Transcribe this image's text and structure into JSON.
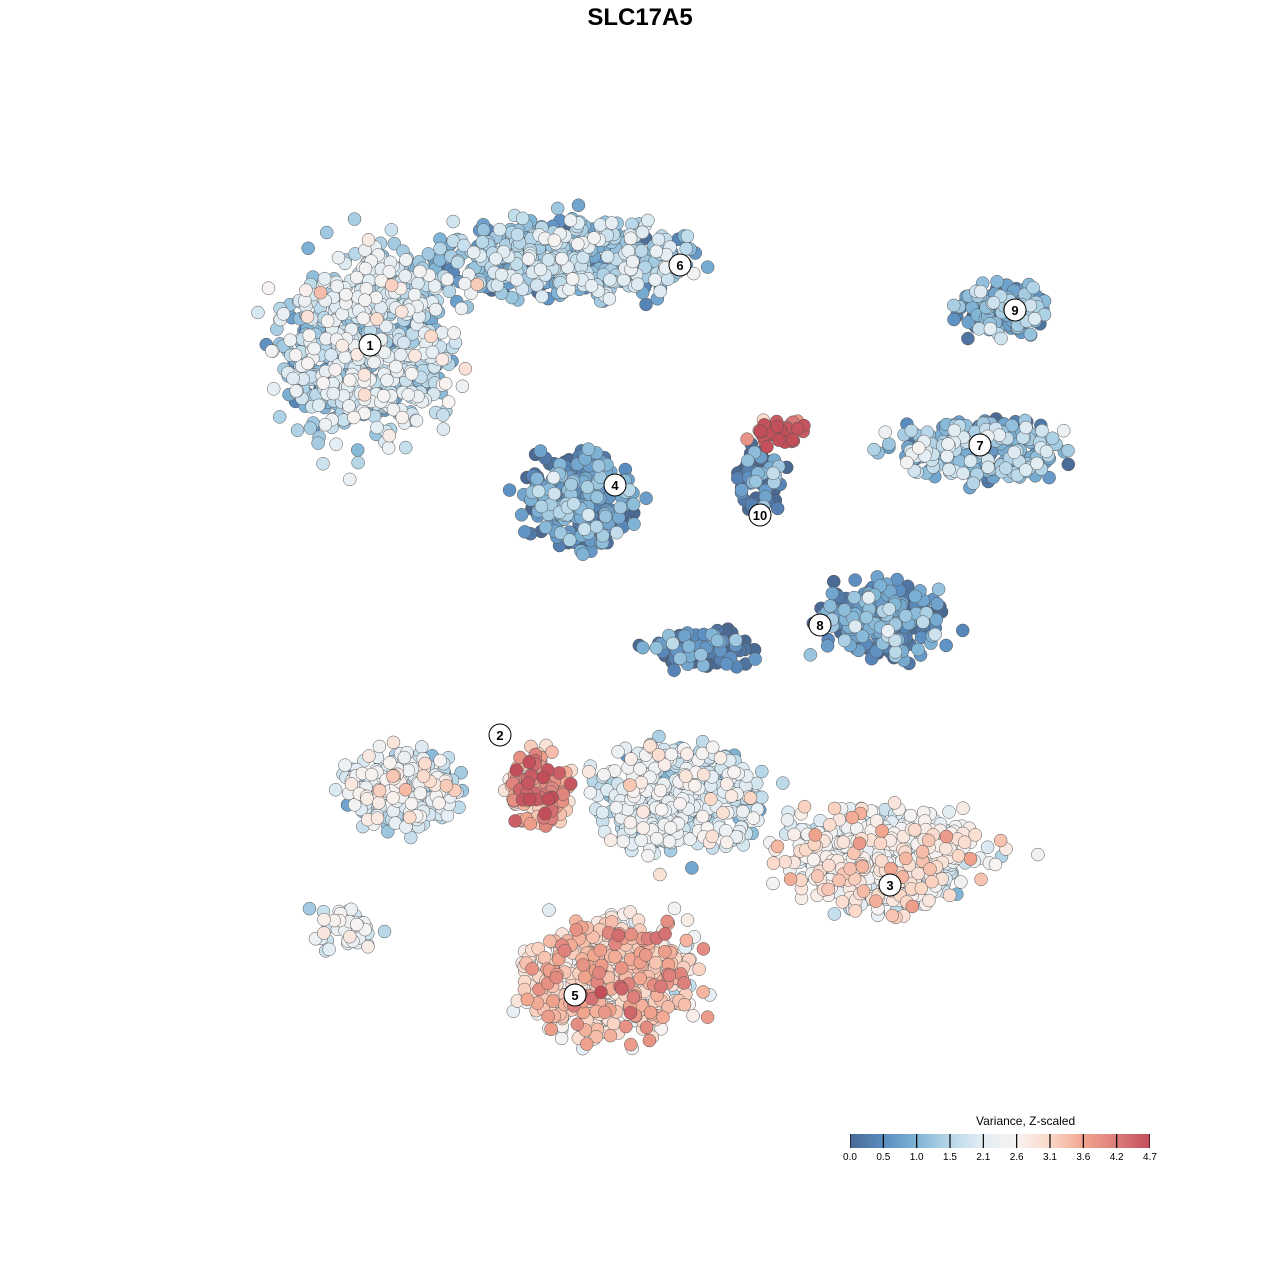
{
  "chart_data": {
    "type": "scatter",
    "title": "SLC17A5",
    "xlabel": "",
    "ylabel": "",
    "xlim": [
      -9,
      10
    ],
    "ylim": [
      -9.5,
      9.5
    ],
    "grid": false,
    "legend": {
      "title": "Variance, Z-scaled",
      "placement": "bottom-right",
      "ticks": [
        "0.0",
        "0.5",
        "1.0",
        "1.5",
        "2.1",
        "2.6",
        "3.1",
        "3.6",
        "4.2",
        "4.7"
      ],
      "range": [
        0,
        4.7
      ],
      "colors": [
        "#4a6a94",
        "#5a8cc0",
        "#7fb4d6",
        "#b7d7e8",
        "#e4eef4",
        "#f7f3f2",
        "#fbd8c8",
        "#f1a58e",
        "#dc7d7a",
        "#c24e5a"
      ]
    },
    "clusters": [
      {
        "label": "1",
        "center": [
          -5.4,
          5.9
        ],
        "spread": [
          2.6,
          3.0
        ],
        "n": 700,
        "mean": 1.6,
        "label_pos": [
          -5.4,
          5.9
        ]
      },
      {
        "label": "6",
        "center": [
          -1.6,
          7.6
        ],
        "spread": [
          4.0,
          1.2
        ],
        "n": 500,
        "mean": 1.3,
        "label_pos": [
          0.8,
          7.5
        ]
      },
      {
        "label": "4",
        "center": [
          -1.2,
          2.8
        ],
        "spread": [
          1.6,
          1.4
        ],
        "n": 300,
        "mean": 0.6,
        "label_pos": [
          -0.5,
          3.1
        ]
      },
      {
        "label": "10",
        "center": [
          2.4,
          3.2
        ],
        "spread": [
          0.8,
          1.0
        ],
        "n": 60,
        "mean": 0.3,
        "label_pos": [
          2.4,
          2.5
        ]
      },
      {
        "label": "",
        "center": [
          2.8,
          4.2
        ],
        "spread": [
          1.0,
          0.4
        ],
        "n": 40,
        "mean": 4.3,
        "label_pos": null
      },
      {
        "label": "9",
        "center": [
          7.2,
          6.6
        ],
        "spread": [
          1.4,
          0.8
        ],
        "n": 150,
        "mean": 0.8,
        "label_pos": [
          7.5,
          6.6
        ]
      },
      {
        "label": "7",
        "center": [
          6.8,
          3.8
        ],
        "spread": [
          2.6,
          1.0
        ],
        "n": 250,
        "mean": 1.2,
        "label_pos": [
          6.8,
          3.9
        ]
      },
      {
        "label": "8",
        "center": [
          4.8,
          0.4
        ],
        "spread": [
          2.0,
          1.2
        ],
        "n": 250,
        "mean": 0.5,
        "label_pos": [
          3.6,
          0.3
        ]
      },
      {
        "label": "",
        "center": [
          1.2,
          -0.2
        ],
        "spread": [
          1.6,
          0.6
        ],
        "n": 100,
        "mean": 0.2,
        "label_pos": null
      },
      {
        "label": "2",
        "center": [
          -4.8,
          -3.0
        ],
        "spread": [
          1.8,
          1.2
        ],
        "n": 250,
        "mean": 1.9,
        "label_pos": [
          -2.8,
          -1.9
        ]
      },
      {
        "label": "",
        "center": [
          -2.0,
          -3.0
        ],
        "spread": [
          1.0,
          1.2
        ],
        "n": 120,
        "mean": 3.8,
        "label_pos": null
      },
      {
        "label": "3",
        "center": [
          4.8,
          -4.4
        ],
        "spread": [
          3.0,
          1.6
        ],
        "n": 500,
        "mean": 2.4,
        "label_pos": [
          5.0,
          -4.9
        ]
      },
      {
        "label": "",
        "center": [
          0.8,
          -3.2
        ],
        "spread": [
          2.4,
          1.6
        ],
        "n": 500,
        "mean": 1.8,
        "label_pos": null
      },
      {
        "label": "5",
        "center": [
          -0.6,
          -6.8
        ],
        "spread": [
          2.6,
          1.8
        ],
        "n": 600,
        "mean": 3.0,
        "label_pos": [
          -1.3,
          -7.1
        ]
      },
      {
        "label": "",
        "center": [
          -6.0,
          -5.8
        ],
        "spread": [
          1.0,
          0.6
        ],
        "n": 50,
        "mean": 2.0,
        "label_pos": null
      }
    ]
  }
}
